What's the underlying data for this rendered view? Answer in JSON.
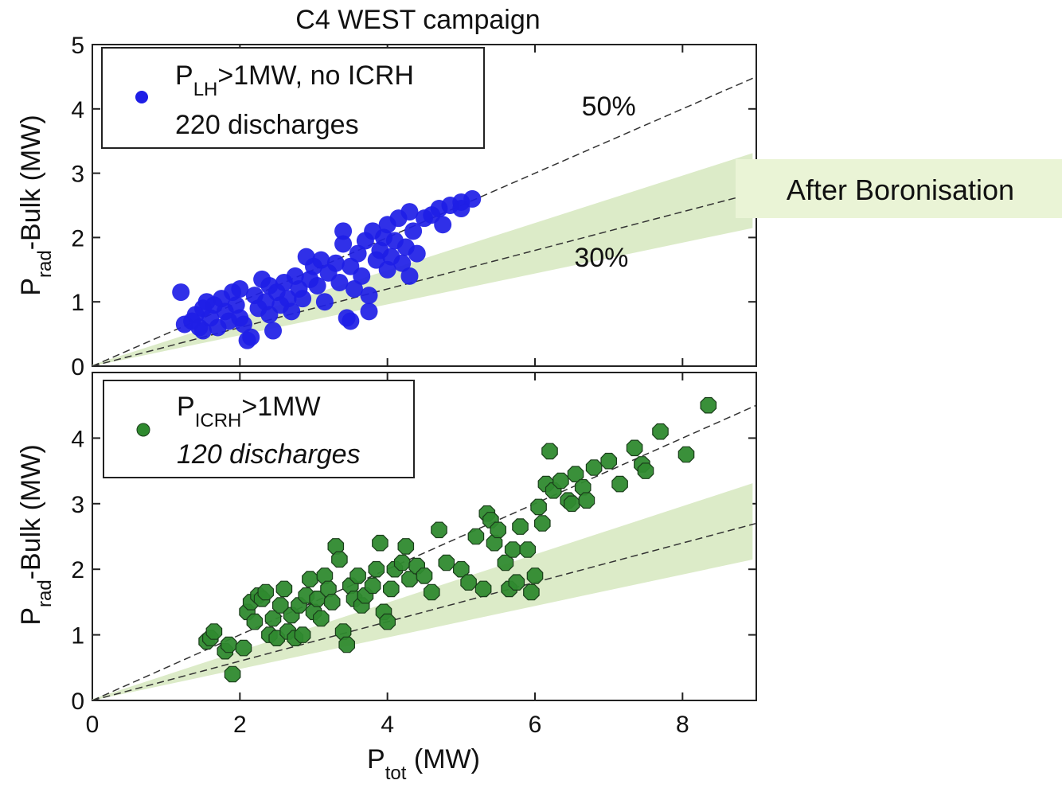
{
  "figure": {
    "title": "C4 WEST campaign",
    "callout": "After Boronisation",
    "colors": {
      "band": "#dcebc8",
      "callout_bg": "#eaf4d6",
      "top_series": "#1e1ee6",
      "bottom_series": "#2f8a2f",
      "reference_line": "#333333"
    }
  },
  "chart_data": [
    {
      "type": "scatter",
      "panel": "top",
      "ylabel": {
        "main": "P",
        "sub": "rad",
        "rest": "-Bulk (MW)"
      },
      "xlabel": "",
      "xlim": [
        0,
        9
      ],
      "ylim": [
        0,
        5
      ],
      "yticks": [
        0,
        1,
        2,
        3,
        4,
        5
      ],
      "xticks": [
        2,
        4,
        6,
        8
      ],
      "show_x_tick_labels": false,
      "legend": {
        "placement": "top-left",
        "line1": {
          "main": "P",
          "sub": "LH",
          "rest": ">1MW, no ICRH"
        },
        "line2": "220 discharges",
        "line2_italic": false
      },
      "reference_lines": [
        {
          "label": "50%",
          "slope": 0.5,
          "label_x": 7.0,
          "label_y": 3.9
        },
        {
          "label": "30%",
          "slope": 0.3,
          "label_x": 6.9,
          "label_y": 1.55
        }
      ],
      "band": {
        "lower_slope": 0.24,
        "upper_slope": 0.37,
        "x_end": 8.95
      },
      "series": [
        {
          "marker_color": "#1e1ee6",
          "points": [
            [
              1.2,
              1.15
            ],
            [
              1.25,
              0.65
            ],
            [
              1.35,
              0.7
            ],
            [
              1.4,
              0.8
            ],
            [
              1.45,
              0.6
            ],
            [
              1.5,
              0.9
            ],
            [
              1.5,
              0.55
            ],
            [
              1.55,
              1.0
            ],
            [
              1.6,
              0.75
            ],
            [
              1.65,
              0.95
            ],
            [
              1.7,
              0.6
            ],
            [
              1.75,
              1.05
            ],
            [
              1.8,
              0.85
            ],
            [
              1.85,
              0.7
            ],
            [
              1.9,
              1.15
            ],
            [
              1.95,
              0.95
            ],
            [
              2.0,
              0.75
            ],
            [
              2.0,
              1.2
            ],
            [
              2.05,
              0.65
            ],
            [
              2.1,
              0.4
            ],
            [
              2.15,
              0.45
            ],
            [
              2.2,
              1.1
            ],
            [
              2.25,
              0.9
            ],
            [
              2.3,
              1.35
            ],
            [
              2.35,
              1.0
            ],
            [
              2.4,
              0.8
            ],
            [
              2.4,
              1.25
            ],
            [
              2.45,
              0.55
            ],
            [
              2.5,
              1.15
            ],
            [
              2.55,
              0.95
            ],
            [
              2.6,
              1.3
            ],
            [
              2.65,
              1.05
            ],
            [
              2.7,
              0.85
            ],
            [
              2.75,
              1.4
            ],
            [
              2.8,
              1.2
            ],
            [
              2.85,
              1.05
            ],
            [
              2.9,
              1.7
            ],
            [
              2.95,
              1.35
            ],
            [
              3.0,
              1.55
            ],
            [
              3.05,
              1.25
            ],
            [
              3.1,
              1.65
            ],
            [
              3.15,
              1.0
            ],
            [
              3.2,
              1.45
            ],
            [
              3.3,
              1.6
            ],
            [
              3.35,
              1.3
            ],
            [
              3.4,
              1.9
            ],
            [
              3.4,
              2.1
            ],
            [
              3.45,
              0.75
            ],
            [
              3.5,
              0.7
            ],
            [
              3.5,
              1.55
            ],
            [
              3.55,
              1.2
            ],
            [
              3.6,
              1.75
            ],
            [
              3.65,
              1.4
            ],
            [
              3.7,
              1.95
            ],
            [
              3.75,
              1.1
            ],
            [
              3.75,
              0.85
            ],
            [
              3.8,
              2.1
            ],
            [
              3.85,
              1.65
            ],
            [
              3.9,
              1.8
            ],
            [
              3.95,
              2.0
            ],
            [
              4.0,
              1.5
            ],
            [
              4.0,
              2.2
            ],
            [
              4.05,
              1.7
            ],
            [
              4.1,
              1.95
            ],
            [
              4.15,
              2.3
            ],
            [
              4.2,
              1.6
            ],
            [
              4.25,
              1.85
            ],
            [
              4.3,
              2.4
            ],
            [
              4.3,
              1.4
            ],
            [
              4.35,
              2.1
            ],
            [
              4.4,
              1.75
            ],
            [
              4.5,
              2.3
            ],
            [
              4.6,
              2.35
            ],
            [
              4.7,
              2.45
            ],
            [
              4.75,
              2.2
            ],
            [
              4.85,
              2.5
            ],
            [
              5.0,
              2.55
            ],
            [
              5.0,
              2.45
            ],
            [
              5.15,
              2.6
            ]
          ]
        }
      ]
    },
    {
      "type": "scatter",
      "panel": "bottom",
      "ylabel": {
        "main": "P",
        "sub": "rad",
        "rest": "-Bulk (MW)"
      },
      "xlabel": {
        "main": "P",
        "sub": "tot",
        "rest": " (MW)"
      },
      "xlim": [
        0,
        9
      ],
      "ylim": [
        0,
        5
      ],
      "yticks": [
        0,
        1,
        2,
        3,
        4
      ],
      "xticks": [
        0,
        2,
        4,
        6,
        8
      ],
      "show_x_tick_labels": true,
      "legend": {
        "placement": "top-left",
        "line1": {
          "main": "P",
          "sub": "ICRH",
          "rest": ">1MW"
        },
        "line2": "120 discharges",
        "line2_italic": true
      },
      "reference_lines": [
        {
          "label": "",
          "slope": 0.5
        },
        {
          "label": "",
          "slope": 0.3
        }
      ],
      "band": {
        "lower_slope": 0.24,
        "upper_slope": 0.37,
        "x_end": 8.95
      },
      "series": [
        {
          "marker_color": "#2f8a2f",
          "points": [
            [
              1.55,
              0.9
            ],
            [
              1.6,
              0.95
            ],
            [
              1.65,
              1.05
            ],
            [
              1.8,
              0.75
            ],
            [
              1.85,
              0.85
            ],
            [
              1.9,
              0.4
            ],
            [
              2.05,
              0.8
            ],
            [
              2.1,
              1.35
            ],
            [
              2.15,
              1.5
            ],
            [
              2.2,
              1.2
            ],
            [
              2.25,
              1.6
            ],
            [
              2.3,
              1.55
            ],
            [
              2.35,
              1.65
            ],
            [
              2.4,
              1.0
            ],
            [
              2.45,
              1.25
            ],
            [
              2.5,
              0.95
            ],
            [
              2.55,
              1.45
            ],
            [
              2.6,
              1.7
            ],
            [
              2.65,
              1.05
            ],
            [
              2.7,
              1.3
            ],
            [
              2.75,
              0.95
            ],
            [
              2.8,
              1.45
            ],
            [
              2.85,
              1.0
            ],
            [
              2.9,
              1.6
            ],
            [
              2.95,
              1.85
            ],
            [
              3.0,
              1.35
            ],
            [
              3.05,
              1.55
            ],
            [
              3.1,
              1.25
            ],
            [
              3.15,
              1.9
            ],
            [
              3.2,
              1.7
            ],
            [
              3.25,
              1.5
            ],
            [
              3.3,
              2.35
            ],
            [
              3.35,
              2.15
            ],
            [
              3.4,
              1.05
            ],
            [
              3.45,
              0.85
            ],
            [
              3.5,
              1.75
            ],
            [
              3.55,
              1.55
            ],
            [
              3.6,
              1.9
            ],
            [
              3.65,
              1.45
            ],
            [
              3.7,
              1.6
            ],
            [
              3.8,
              1.75
            ],
            [
              3.85,
              2.0
            ],
            [
              3.9,
              2.4
            ],
            [
              3.95,
              1.35
            ],
            [
              4.0,
              1.2
            ],
            [
              4.05,
              1.7
            ],
            [
              4.1,
              2.0
            ],
            [
              4.2,
              2.1
            ],
            [
              4.25,
              2.35
            ],
            [
              4.3,
              1.85
            ],
            [
              4.4,
              2.05
            ],
            [
              4.5,
              1.9
            ],
            [
              4.6,
              1.65
            ],
            [
              4.7,
              2.6
            ],
            [
              4.8,
              2.1
            ],
            [
              5.0,
              2.0
            ],
            [
              5.1,
              1.8
            ],
            [
              5.2,
              2.5
            ],
            [
              5.3,
              1.7
            ],
            [
              5.35,
              2.85
            ],
            [
              5.4,
              2.75
            ],
            [
              5.45,
              2.4
            ],
            [
              5.5,
              2.6
            ],
            [
              5.6,
              2.1
            ],
            [
              5.65,
              1.7
            ],
            [
              5.7,
              2.3
            ],
            [
              5.75,
              1.8
            ],
            [
              5.8,
              2.65
            ],
            [
              5.9,
              2.3
            ],
            [
              5.95,
              1.65
            ],
            [
              6.0,
              1.9
            ],
            [
              6.05,
              2.95
            ],
            [
              6.1,
              2.7
            ],
            [
              6.15,
              3.3
            ],
            [
              6.2,
              3.8
            ],
            [
              6.25,
              3.2
            ],
            [
              6.35,
              3.35
            ],
            [
              6.45,
              3.05
            ],
            [
              6.5,
              3.0
            ],
            [
              6.55,
              3.45
            ],
            [
              6.65,
              3.25
            ],
            [
              6.7,
              3.05
            ],
            [
              6.8,
              3.55
            ],
            [
              7.0,
              3.65
            ],
            [
              7.15,
              3.3
            ],
            [
              7.35,
              3.85
            ],
            [
              7.45,
              3.6
            ],
            [
              7.5,
              3.5
            ],
            [
              7.7,
              4.1
            ],
            [
              8.05,
              3.75
            ],
            [
              8.35,
              4.5
            ]
          ]
        }
      ]
    }
  ]
}
